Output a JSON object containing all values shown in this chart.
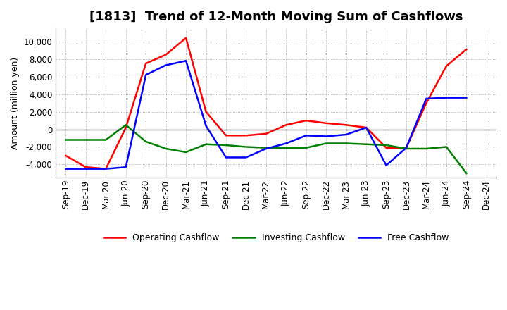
{
  "title": "[1813]  Trend of 12-Month Moving Sum of Cashflows",
  "ylabel": "Amount (million yen)",
  "x_labels": [
    "Sep-19",
    "Dec-19",
    "Mar-20",
    "Jun-20",
    "Sep-20",
    "Dec-20",
    "Mar-21",
    "Jun-21",
    "Sep-21",
    "Dec-21",
    "Mar-22",
    "Jun-22",
    "Sep-22",
    "Dec-22",
    "Mar-23",
    "Jun-23",
    "Sep-23",
    "Dec-23",
    "Mar-24",
    "Jun-24",
    "Sep-24",
    "Dec-24"
  ],
  "operating": [
    -3000,
    -4300,
    -4500,
    200,
    7500,
    8500,
    10400,
    2000,
    -700,
    -700,
    -500,
    500,
    1000,
    700,
    500,
    200,
    -2100,
    -2100,
    3000,
    7200,
    9100,
    null
  ],
  "investing": [
    -1200,
    -1200,
    -1200,
    500,
    -1400,
    -2200,
    -2600,
    -1700,
    -1800,
    -2000,
    -2100,
    -2100,
    -2100,
    -1600,
    -1600,
    -1700,
    -1800,
    -2200,
    -2200,
    -2000,
    -5000,
    null
  ],
  "free": [
    -4500,
    -4500,
    -4500,
    -4300,
    6200,
    7300,
    7800,
    400,
    -3200,
    -3200,
    -2200,
    -1600,
    -700,
    -800,
    -600,
    200,
    -4100,
    -2100,
    3500,
    3600,
    3600,
    null
  ],
  "operating_color": "#ff0000",
  "investing_color": "#008000",
  "free_color": "#0000ff",
  "ylim": [
    -5500,
    11500
  ],
  "yticks": [
    -4000,
    -2000,
    0,
    2000,
    4000,
    6000,
    8000,
    10000
  ],
  "background_color": "#ffffff",
  "grid_color": "#999999",
  "title_fontsize": 13,
  "label_fontsize": 9,
  "tick_fontsize": 8.5
}
